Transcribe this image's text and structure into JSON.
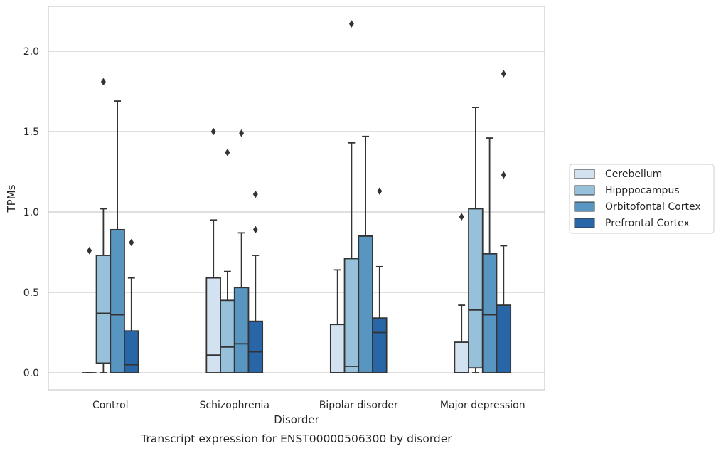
{
  "chart_data": {
    "type": "box",
    "title": "Transcript expression for ENST00000506300 by disorder",
    "xlabel": "Disorder",
    "ylabel": "TPMs",
    "ylim": [
      -0.1,
      2.28
    ],
    "yticks": [
      0.0,
      0.5,
      1.0,
      1.5,
      2.0
    ],
    "ytick_labels": [
      "0.0",
      "0.5",
      "1.0",
      "1.5",
      "2.0"
    ],
    "grid": "horizontal",
    "legend_position": "right",
    "categories": [
      "Control",
      "Schizophrenia",
      "Bipolar disorder",
      "Major depression"
    ],
    "series": [
      {
        "name": "Cerebellum",
        "color": "#d3e2f0",
        "boxes": [
          {
            "min": 0.0,
            "q1": 0.0,
            "median": 0.0,
            "q3": 0.0,
            "max": 0.0,
            "outliers": [
              0.76
            ]
          },
          {
            "min": 0.0,
            "q1": 0.0,
            "median": 0.11,
            "q3": 0.59,
            "max": 0.95,
            "outliers": [
              1.5
            ]
          },
          {
            "min": 0.0,
            "q1": 0.0,
            "median": 0.0,
            "q3": 0.3,
            "max": 0.64,
            "outliers": []
          },
          {
            "min": 0.0,
            "q1": 0.0,
            "median": 0.0,
            "q3": 0.19,
            "max": 0.42,
            "outliers": [
              0.97
            ]
          }
        ]
      },
      {
        "name": "Hipppocampus",
        "color": "#97c1da",
        "boxes": [
          {
            "min": 0.0,
            "q1": 0.06,
            "median": 0.37,
            "q3": 0.73,
            "max": 1.02,
            "outliers": [
              1.81
            ]
          },
          {
            "min": 0.0,
            "q1": 0.0,
            "median": 0.16,
            "q3": 0.45,
            "max": 0.63,
            "outliers": [
              1.37
            ]
          },
          {
            "min": 0.0,
            "q1": 0.0,
            "median": 0.04,
            "q3": 0.71,
            "max": 1.43,
            "outliers": [
              2.17
            ]
          },
          {
            "min": 0.0,
            "q1": 0.03,
            "median": 0.39,
            "q3": 1.02,
            "max": 1.65,
            "outliers": []
          }
        ]
      },
      {
        "name": "Orbitofontal Cortex",
        "color": "#5896c1",
        "boxes": [
          {
            "min": 0.0,
            "q1": 0.0,
            "median": 0.36,
            "q3": 0.89,
            "max": 1.69,
            "outliers": []
          },
          {
            "min": 0.0,
            "q1": 0.0,
            "median": 0.18,
            "q3": 0.53,
            "max": 0.87,
            "outliers": [
              1.49
            ]
          },
          {
            "min": 0.0,
            "q1": 0.0,
            "median": 0.0,
            "q3": 0.85,
            "max": 1.47,
            "outliers": []
          },
          {
            "min": 0.0,
            "q1": 0.0,
            "median": 0.36,
            "q3": 0.74,
            "max": 1.46,
            "outliers": []
          }
        ]
      },
      {
        "name": "Prefrontal Cortex",
        "color": "#2966a7",
        "boxes": [
          {
            "min": 0.0,
            "q1": 0.0,
            "median": 0.05,
            "q3": 0.26,
            "max": 0.59,
            "outliers": [
              0.81
            ]
          },
          {
            "min": 0.0,
            "q1": 0.0,
            "median": 0.13,
            "q3": 0.32,
            "max": 0.73,
            "outliers": [
              0.89,
              1.11
            ]
          },
          {
            "min": 0.0,
            "q1": 0.0,
            "median": 0.25,
            "q3": 0.34,
            "max": 0.66,
            "outliers": [
              1.13
            ]
          },
          {
            "min": 0.0,
            "q1": 0.0,
            "median": 0.0,
            "q3": 0.42,
            "max": 0.79,
            "outliers": [
              1.23,
              1.86
            ]
          }
        ]
      }
    ]
  }
}
